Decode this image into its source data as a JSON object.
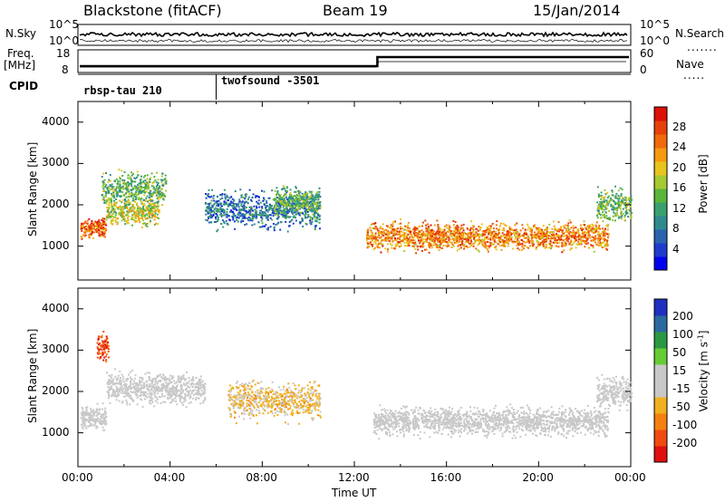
{
  "header": {
    "station": "Blackstone (fitACF)",
    "beam": "Beam 19",
    "date": "15/Jan/2014"
  },
  "left_labels": {
    "nsky": "N.Sky",
    "freq": "Freq.",
    "freq_unit": "[MHz]",
    "cpid": "CPID"
  },
  "right_labels": {
    "nsearch": "N.Search",
    "nave": "Nave"
  },
  "noise_axis": {
    "left_ticks": [
      "10^5",
      "10^0"
    ],
    "right_ticks": [
      "10^5",
      "10^0"
    ]
  },
  "freq_axis": {
    "left_ticks": [
      "18",
      "8"
    ],
    "right_ticks": [
      "60",
      "0"
    ]
  },
  "cpid_segments": [
    {
      "label": "rbsp-tau 210",
      "start_hour": 0
    },
    {
      "label": "twofsound -3501",
      "start_hour": 6
    }
  ],
  "colors": {
    "power_scale": [
      "#0000ee",
      "#1e3ccc",
      "#2a62b0",
      "#2f8a8f",
      "#3aa06e",
      "#5ab53a",
      "#a7c932",
      "#e8c41e",
      "#f59a10",
      "#f06a0c",
      "#e8400a",
      "#dd1108"
    ],
    "velocity_scale": [
      "#e01010",
      "#f04a10",
      "#f5800f",
      "#f0b020",
      "#c8c8c8",
      "#c8c8c8",
      "#66cc33",
      "#2a9944",
      "#2a6aa0",
      "#1f30c0"
    ]
  },
  "chart_data": [
    {
      "type": "heatmap",
      "name": "power-panel",
      "ylabel": "Slant Range [km]",
      "xlabel": "",
      "xlim_hours": [
        0,
        24
      ],
      "ylim": [
        180,
        4500
      ],
      "yticks": [
        "1000",
        "2000",
        "3000",
        "4000"
      ],
      "colorbar": {
        "label": "Power [dB]",
        "range": [
          0,
          32
        ],
        "ticks": [
          "4",
          "8",
          "12",
          "16",
          "20",
          "24",
          "28"
        ]
      },
      "echo_bands": [
        {
          "t0": 0.1,
          "t1": 1.2,
          "r_center": 1450,
          "r_width": 200,
          "value": 26
        },
        {
          "t0": 1.2,
          "t1": 3.5,
          "r_center": 1850,
          "r_width": 300,
          "value": 18
        },
        {
          "t0": 1.0,
          "t1": 3.8,
          "r_center": 2400,
          "r_width": 350,
          "value": 14
        },
        {
          "t0": 5.5,
          "t1": 10.5,
          "r_center": 1900,
          "r_width": 400,
          "value": 8
        },
        {
          "t0": 8.5,
          "t1": 10.5,
          "r_center": 2100,
          "r_width": 300,
          "value": 14
        },
        {
          "t0": 12.5,
          "t1": 23.0,
          "r_center": 1250,
          "r_width": 300,
          "value": 24
        },
        {
          "t0": 22.5,
          "t1": 24.0,
          "r_center": 2000,
          "r_width": 350,
          "value": 14
        }
      ]
    },
    {
      "type": "heatmap",
      "name": "velocity-panel",
      "ylabel": "Slant Range [km]",
      "xlabel": "Time UT",
      "xlim_hours": [
        0,
        24
      ],
      "ylim": [
        180,
        4500
      ],
      "yticks": [
        "1000",
        "2000",
        "3000",
        "4000"
      ],
      "xticks": [
        "00:00",
        "04:00",
        "08:00",
        "12:00",
        "16:00",
        "20:00",
        "00:00"
      ],
      "colorbar": {
        "label": "Velocity [m s",
        "label_sup": "-1",
        "label_end": "]",
        "range": [
          -250,
          250
        ],
        "ticks": [
          "200",
          "100",
          "50",
          "15",
          "-15",
          "-50",
          "-100",
          "-200"
        ]
      },
      "echo_bands": [
        {
          "t0": 0.1,
          "t1": 1.2,
          "r_center": 1400,
          "r_width": 250,
          "value": 0
        },
        {
          "t0": 0.8,
          "t1": 1.3,
          "r_center": 3050,
          "r_width": 300,
          "value": -180
        },
        {
          "t0": 1.2,
          "t1": 5.5,
          "r_center": 2100,
          "r_width": 350,
          "value": 0
        },
        {
          "t0": 6.5,
          "t1": 10.5,
          "r_center": 1800,
          "r_width": 400,
          "value": -60
        },
        {
          "t0": 12.8,
          "t1": 23.0,
          "r_center": 1300,
          "r_width": 300,
          "value": 0
        },
        {
          "t0": 22.5,
          "t1": 24.0,
          "r_center": 2000,
          "r_width": 350,
          "value": 0
        }
      ]
    }
  ]
}
